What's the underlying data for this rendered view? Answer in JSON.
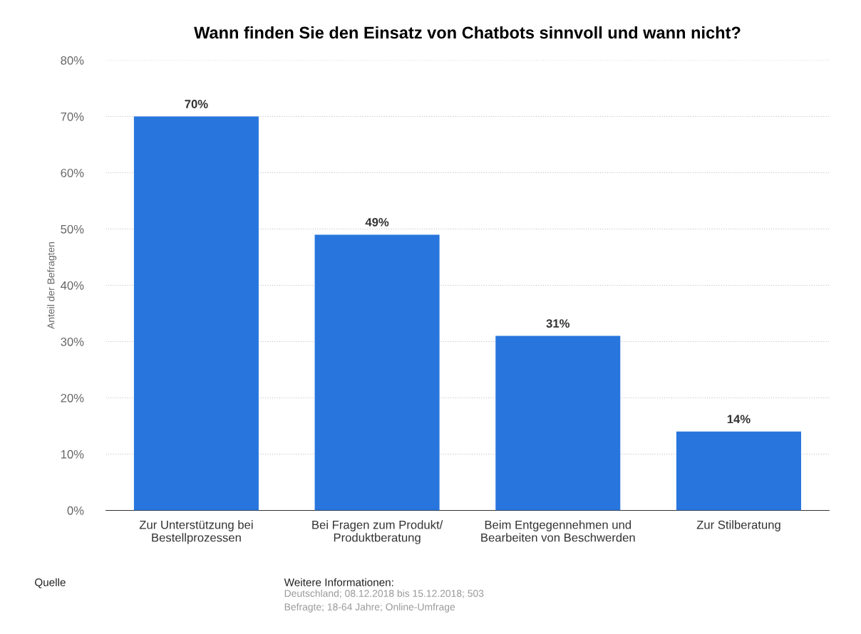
{
  "chart_data": {
    "type": "bar",
    "title": "Wann finden Sie den Einsatz von Chatbots sinnvoll und wann nicht?",
    "ylabel": "Anteil der Befragten",
    "categories": [
      "Zur Unterstützung bei\nBestellprozessen",
      "Bei Fragen zum Produkt/\nProduktberatung",
      "Beim Entgegennehmen und\nBearbeiten von Beschwerden",
      "Zur Stilberatung"
    ],
    "values": [
      70,
      49,
      31,
      14
    ],
    "value_labels": [
      "70%",
      "49%",
      "31%",
      "14%"
    ],
    "color": "#2876dd",
    "ylim": [
      0,
      80
    ],
    "yticks": [
      {
        "value": 0,
        "label": "0%"
      },
      {
        "value": 10,
        "label": "10%"
      },
      {
        "value": 20,
        "label": "20%"
      },
      {
        "value": 30,
        "label": "30%"
      },
      {
        "value": 40,
        "label": "40%"
      },
      {
        "value": 50,
        "label": "50%"
      },
      {
        "value": 60,
        "label": "60%"
      },
      {
        "value": 70,
        "label": "70%"
      },
      {
        "value": 80,
        "label": "80%"
      }
    ],
    "grid": "y",
    "annotations": [
      "Quelle",
      "Weitere Informationen:",
      "Deutschland; 08.12.2018 bis 15.12.2018; 503\nBefragte; 18-64 Jahre; Online-Umfrage"
    ]
  }
}
